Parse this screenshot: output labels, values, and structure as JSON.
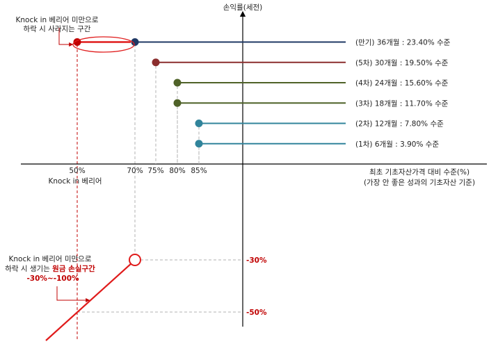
{
  "colors": {
    "navy": "#1f3864",
    "brown_red": "#8b2e2e",
    "olive": "#4f6228",
    "teal": "#31849b",
    "red": "#e01b1b",
    "dark_red": "#c00000",
    "axis": "#000000",
    "guide_gray": "#b0b0b0"
  },
  "axis": {
    "y_title": "손익률(세전)",
    "x_title_1": "최초 기초자산가격 대비 수준(%)",
    "x_title_2": "(가장 안 좋은 성과의 기초자산 기준)",
    "knock_in_label": "Knock in 베리어"
  },
  "x_ticks": [
    {
      "label": "50%",
      "value": 50
    },
    {
      "label": "70%",
      "value": 70
    },
    {
      "label": "75%",
      "value": 75
    },
    {
      "label": "80%",
      "value": 80
    },
    {
      "label": "85%",
      "value": 85
    }
  ],
  "y_labels": [
    {
      "label": "-30%",
      "value": -30
    },
    {
      "label": "-50%",
      "value": -50
    }
  ],
  "payoffs": [
    {
      "label": "(만기) 36개월 : 23.40% 수준",
      "barrier": 70,
      "rate": 23.4,
      "color": "navy"
    },
    {
      "label": "(5차) 30개월 : 19.50% 수준",
      "barrier": 75,
      "rate": 19.5,
      "color": "brown_red"
    },
    {
      "label": "(4차) 24개월 : 15.60% 수준",
      "barrier": 80,
      "rate": 15.6,
      "color": "olive"
    },
    {
      "label": "(3차) 18개월 : 11.70% 수준",
      "barrier": 80,
      "rate": 11.7,
      "color": "olive"
    },
    {
      "label": "(2차) 12개월 : 7.80% 수준",
      "barrier": 85,
      "rate": 7.8,
      "color": "teal"
    },
    {
      "label": "(1차) 6개월 : 3.90% 수준",
      "barrier": 85,
      "rate": 3.9,
      "color": "teal"
    }
  ],
  "knock_in_barrier": 50,
  "annotation_top": {
    "line1": "Knock in 베리어 미만으로",
    "line2": "하락 시 사라지는 구간"
  },
  "annotation_bottom": {
    "line1": "Knock in 베리어 미만으로",
    "line2_prefix": "하락 시 생기는 ",
    "line2_highlight": "원금 손실구간",
    "line3": "-30%~-100%"
  }
}
